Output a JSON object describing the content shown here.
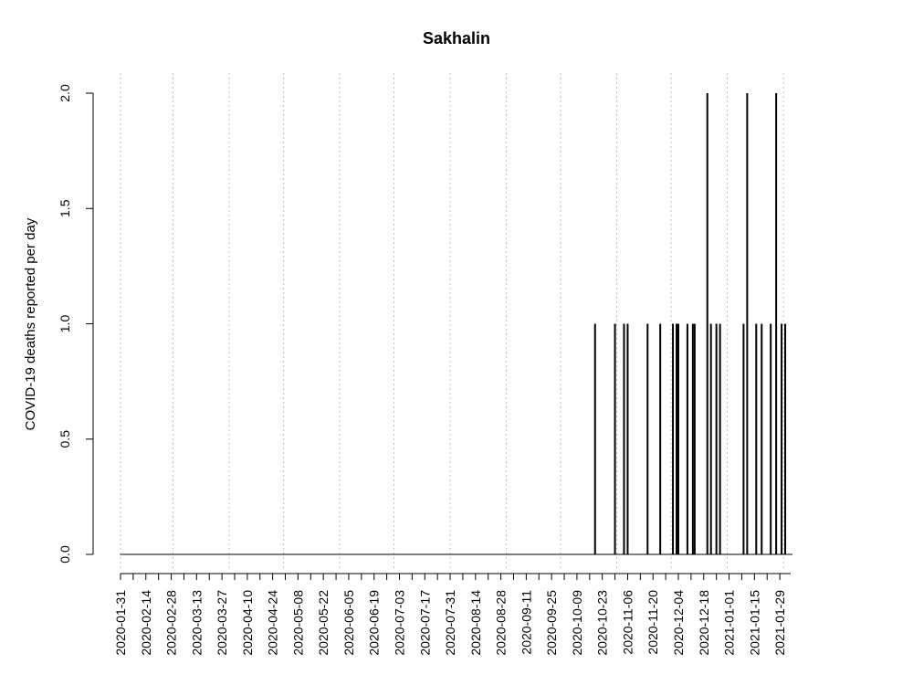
{
  "chart_data": {
    "type": "bar",
    "title": "Sakhalin",
    "xlabel": "",
    "ylabel": "COVID-19 deaths reported per day",
    "x_start": "2020-01-31",
    "x_end": "2021-02-04",
    "ylim": [
      0,
      2
    ],
    "yticks": [
      "0.0",
      "0.5",
      "1.0",
      "1.5",
      "2.0"
    ],
    "yticks_values": [
      0,
      0.5,
      1,
      1.5,
      2
    ],
    "xticks": [
      "2020-01-31",
      "2020-02-14",
      "2020-02-28",
      "2020-03-13",
      "2020-03-27",
      "2020-04-10",
      "2020-04-24",
      "2020-05-08",
      "2020-05-22",
      "2020-06-05",
      "2020-06-19",
      "2020-07-03",
      "2020-07-17",
      "2020-07-31",
      "2020-08-14",
      "2020-08-28",
      "2020-09-11",
      "2020-09-25",
      "2020-10-09",
      "2020-10-23",
      "2020-11-06",
      "2020-11-20",
      "2020-12-04",
      "2020-12-18",
      "2021-01-01",
      "2021-01-15",
      "2021-01-29"
    ],
    "vgrid_dates": [
      "2020-01-31",
      "2020-02-29",
      "2020-03-31",
      "2020-04-30",
      "2020-05-31",
      "2020-06-30",
      "2020-07-31",
      "2020-08-31",
      "2020-09-30",
      "2020-10-31",
      "2020-11-30",
      "2020-12-31",
      "2021-01-31"
    ],
    "grid": "vertical dotted",
    "nonzero": [
      {
        "date": "2020-10-19",
        "value": 1
      },
      {
        "date": "2020-10-30",
        "value": 1
      },
      {
        "date": "2020-11-04",
        "value": 1
      },
      {
        "date": "2020-11-06",
        "value": 1
      },
      {
        "date": "2020-11-17",
        "value": 1
      },
      {
        "date": "2020-11-24",
        "value": 1
      },
      {
        "date": "2020-12-01",
        "value": 1
      },
      {
        "date": "2020-12-03",
        "value": 1
      },
      {
        "date": "2020-12-04",
        "value": 1
      },
      {
        "date": "2020-12-09",
        "value": 1
      },
      {
        "date": "2020-12-12",
        "value": 1
      },
      {
        "date": "2020-12-13",
        "value": 1
      },
      {
        "date": "2020-12-20",
        "value": 2
      },
      {
        "date": "2020-12-22",
        "value": 1
      },
      {
        "date": "2020-12-25",
        "value": 1
      },
      {
        "date": "2020-12-27",
        "value": 1
      },
      {
        "date": "2021-01-09",
        "value": 1
      },
      {
        "date": "2021-01-11",
        "value": 2
      },
      {
        "date": "2021-01-16",
        "value": 1
      },
      {
        "date": "2021-01-19",
        "value": 1
      },
      {
        "date": "2021-01-24",
        "value": 1
      },
      {
        "date": "2021-01-27",
        "value": 2
      },
      {
        "date": "2021-01-30",
        "value": 1
      },
      {
        "date": "2021-02-01",
        "value": 1
      }
    ],
    "colors": {
      "bars": "#000000",
      "grid": "#c0c0c0",
      "axis": "#000000"
    }
  }
}
